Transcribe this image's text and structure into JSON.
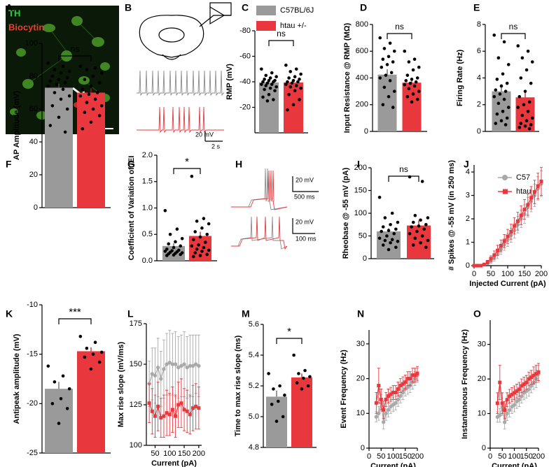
{
  "panel_labels": [
    "A",
    "B",
    "C",
    "D",
    "E",
    "F",
    "G",
    "H",
    "I",
    "J",
    "K",
    "L",
    "M",
    "N",
    "O"
  ],
  "micrograph": {
    "labels": [
      "TH",
      "Biocytin"
    ]
  },
  "traces_b": {
    "scale_y": "20 mV",
    "scale_x": "2 s"
  },
  "traces_h": {
    "top_scale_y": "20 mV",
    "top_scale_x": "500 ms",
    "bottom_scale_y": "20 mV",
    "bottom_scale_x": "100 ms"
  },
  "chart_data": [
    {
      "type": "bar",
      "ylabel": "RMP (mV)",
      "ylim": [
        0,
        -80
      ],
      "yticks": [
        -80,
        -60,
        -40,
        -20
      ],
      "annotation": "ns",
      "legend": "top",
      "series": [
        {
          "name": "C57BL/6J",
          "color": "#9a9a9a",
          "values": [
            -39.5
          ],
          "errors": [
            2
          ],
          "points": [
            -50,
            -47,
            -45,
            -44,
            -43,
            -42,
            -41,
            -41,
            -40,
            -40,
            -39,
            -38,
            -38,
            -37,
            -36,
            -35,
            -34,
            -33,
            -30,
            -28,
            -26,
            -25
          ]
        },
        {
          "name": "htau +/-",
          "color": "#e8383d",
          "values": [
            -39.5
          ],
          "errors": [
            2.3
          ],
          "points": [
            -53,
            -50,
            -48,
            -46,
            -44,
            -43,
            -42,
            -41,
            -40,
            -40,
            -39,
            -38,
            -37,
            -36,
            -35,
            -33,
            -30,
            -26,
            -22,
            -18
          ]
        }
      ]
    },
    {
      "type": "bar",
      "ylabel": "Input Resistance @ RMP (MΩ)",
      "ylim": [
        0,
        800
      ],
      "yticks": [
        0,
        200,
        400,
        600,
        800
      ],
      "annotation": "ns",
      "series": [
        {
          "color": "#9a9a9a",
          "values": [
            425
          ],
          "errors": [
            40
          ],
          "points": [
            700,
            660,
            620,
            600,
            560,
            540,
            520,
            500,
            480,
            440,
            420,
            400,
            380,
            330,
            300,
            260,
            200,
            180
          ]
        },
        {
          "color": "#e8383d",
          "values": [
            365
          ],
          "errors": [
            22
          ],
          "points": [
            600,
            540,
            520,
            480,
            460,
            420,
            400,
            390,
            380,
            370,
            360,
            350,
            340,
            320,
            300,
            280,
            260,
            240,
            220
          ]
        }
      ]
    },
    {
      "type": "bar",
      "ylabel": "Firing Rate (Hz)",
      "ylim": [
        0,
        8
      ],
      "yticks": [
        0,
        2,
        4,
        6,
        8
      ],
      "annotation": "ns",
      "series": [
        {
          "color": "#9a9a9a",
          "values": [
            3.0
          ],
          "errors": [
            0.35
          ],
          "points": [
            7.2,
            6.7,
            5.5,
            5.0,
            4.3,
            3.9,
            3.6,
            3.4,
            3.1,
            3.0,
            2.8,
            2.6,
            2.4,
            2.1,
            1.8,
            1.5,
            1.3,
            1.0,
            0.8,
            0.6,
            0.5
          ]
        },
        {
          "color": "#e8383d",
          "values": [
            2.55
          ],
          "errors": [
            0.4
          ],
          "points": [
            6.4,
            6.0,
            5.5,
            5.2,
            4.6,
            4.0,
            3.6,
            3.0,
            2.6,
            2.2,
            2.0,
            1.8,
            1.5,
            1.2,
            1.0,
            0.8,
            0.6,
            0.5,
            0.4,
            0.3,
            0.2
          ]
        }
      ]
    },
    {
      "type": "bar",
      "ylabel": "AP Amplitude (mV)",
      "ylim": [
        0,
        100
      ],
      "yticks": [
        0,
        20,
        40,
        60,
        80,
        100
      ],
      "annotation": "ns",
      "series": [
        {
          "color": "#9a9a9a",
          "values": [
            73
          ],
          "errors": [
            2.5
          ],
          "points": [
            88,
            86,
            84,
            83,
            82,
            80,
            79,
            78,
            77,
            76,
            75,
            74,
            72,
            70,
            68,
            66,
            62,
            60,
            55,
            50,
            46
          ]
        },
        {
          "color": "#e8383d",
          "values": [
            70
          ],
          "errors": [
            2.5
          ],
          "points": [
            86,
            85,
            84,
            82,
            80,
            78,
            76,
            74,
            72,
            70,
            69,
            68,
            66,
            64,
            62,
            60,
            58,
            56,
            52,
            48
          ]
        }
      ]
    },
    {
      "type": "bar",
      "ylabel": "Coefficient of Variation of IEI",
      "ylim": [
        0,
        2.0
      ],
      "yticks": [
        {
          "value": 0,
          "label": "0.0"
        },
        0.5,
        {
          "value": 1,
          "label": "1.0"
        },
        1.5,
        {
          "value": 2,
          "label": "2.0"
        }
      ],
      "annotation": "*",
      "series": [
        {
          "color": "#9a9a9a",
          "values": [
            0.28
          ],
          "errors": [
            0.05
          ],
          "points": [
            0.95,
            0.6,
            0.5,
            0.42,
            0.36,
            0.32,
            0.28,
            0.25,
            0.22,
            0.2,
            0.19,
            0.18,
            0.17,
            0.16,
            0.15,
            0.14,
            0.13,
            0.12,
            0.11,
            0.1
          ]
        },
        {
          "color": "#e8383d",
          "values": [
            0.47
          ],
          "errors": [
            0.08
          ],
          "points": [
            1.6,
            0.8,
            0.75,
            0.7,
            0.62,
            0.55,
            0.5,
            0.45,
            0.4,
            0.35,
            0.3,
            0.28,
            0.25,
            0.22,
            0.2,
            0.18,
            0.15,
            0.12,
            0.1,
            0.08
          ]
        }
      ]
    },
    {
      "type": "bar",
      "ylabel": "Rheobase @ -55 mV (pA)",
      "ylim": [
        0,
        200
      ],
      "yticks": [
        0,
        50,
        100,
        150,
        200
      ],
      "annotation": "ns",
      "series": [
        {
          "color": "#9a9a9a",
          "values": [
            60
          ],
          "errors": [
            7
          ],
          "points": [
            135,
            100,
            90,
            80,
            75,
            70,
            65,
            62,
            60,
            55,
            50,
            45,
            42,
            40,
            38,
            35,
            30,
            25,
            20
          ]
        },
        {
          "color": "#e8383d",
          "values": [
            73
          ],
          "errors": [
            11
          ],
          "points": [
            180,
            170,
            95,
            90,
            85,
            80,
            75,
            72,
            70,
            65,
            60,
            55,
            50,
            45,
            40,
            35,
            30,
            25
          ]
        }
      ]
    },
    {
      "type": "line",
      "ylabel": "# Spikes @ -55 mV (in 250 ms)",
      "xlabel": "Injected Current (pA)",
      "xlim": [
        0,
        200
      ],
      "xticks": [
        0,
        50,
        100,
        150,
        200
      ],
      "ylim": [
        0,
        4.3
      ],
      "yticks": [
        0,
        1,
        2,
        3,
        4
      ],
      "legend": "upper right",
      "x": [
        0,
        10,
        20,
        30,
        40,
        50,
        60,
        70,
        80,
        90,
        100,
        110,
        120,
        130,
        140,
        150,
        160,
        170,
        180,
        190,
        200
      ],
      "series": [
        {
          "name": "C57",
          "color": "#a9a9a9",
          "marker": "circle",
          "values": [
            0,
            0,
            0,
            0.05,
            0.1,
            0.2,
            0.35,
            0.5,
            0.7,
            0.9,
            1.1,
            1.3,
            1.5,
            1.75,
            2.0,
            2.2,
            2.5,
            2.75,
            3.0,
            3.3,
            3.5
          ],
          "errors": [
            0,
            0,
            0,
            0.03,
            0.06,
            0.1,
            0.15,
            0.2,
            0.22,
            0.25,
            0.28,
            0.3,
            0.32,
            0.35,
            0.37,
            0.4,
            0.42,
            0.45,
            0.48,
            0.5,
            0.55
          ]
        },
        {
          "name": "htau",
          "color": "#e8383d",
          "marker": "square",
          "values": [
            0,
            0,
            0,
            0.05,
            0.15,
            0.3,
            0.45,
            0.65,
            0.85,
            1.05,
            1.25,
            1.45,
            1.7,
            1.9,
            2.15,
            2.4,
            2.6,
            2.9,
            3.15,
            3.4,
            3.6
          ],
          "errors": [
            0,
            0,
            0,
            0.03,
            0.08,
            0.12,
            0.18,
            0.22,
            0.25,
            0.28,
            0.3,
            0.32,
            0.35,
            0.38,
            0.4,
            0.42,
            0.45,
            0.48,
            0.5,
            0.55,
            0.6
          ]
        }
      ]
    },
    {
      "type": "bar",
      "ylabel": "Antipeak amplitude (mV)",
      "ylim": [
        -25,
        -10
      ],
      "yticks": [
        -25,
        -20,
        -15,
        -10
      ],
      "annotation": "***",
      "series": [
        {
          "color": "#9a9a9a",
          "values": [
            -18.5
          ],
          "errors": [
            0.7
          ],
          "points": [
            -16.2,
            -17.2,
            -17.8,
            -18.5,
            -19.5,
            -20.0,
            -20.5,
            -22.0
          ]
        },
        {
          "color": "#e8383d",
          "values": [
            -14.7
          ],
          "errors": [
            0.4
          ],
          "points": [
            -13.2,
            -13.8,
            -14.4,
            -14.8,
            -15.0,
            -15.3,
            -15.8,
            -16.5
          ]
        }
      ]
    },
    {
      "type": "line",
      "ylabel": "Max rise slope (mV/ms)",
      "xlabel": "Current (pA)",
      "xlim": [
        20,
        210
      ],
      "xticks": [
        50,
        100,
        150,
        200
      ],
      "ylim": [
        100,
        175
      ],
      "yticks": [
        100,
        125,
        150,
        175
      ],
      "x": [
        30,
        40,
        50,
        60,
        70,
        80,
        90,
        100,
        110,
        120,
        130,
        140,
        150,
        160,
        170,
        180,
        190,
        200
      ],
      "series": [
        {
          "color": "#a9a9a9",
          "marker": "circle",
          "values": [
            138,
            144,
            143,
            148,
            141,
            147,
            150,
            151,
            150,
            150,
            148,
            149,
            150,
            148,
            149,
            149,
            150,
            149
          ],
          "errors": [
            14,
            16,
            17,
            18,
            17,
            18,
            19,
            20,
            19,
            20,
            19,
            19,
            20,
            19,
            19,
            19,
            18,
            19
          ]
        },
        {
          "color": "#e8383d",
          "marker": "square",
          "values": [
            126,
            121,
            118,
            124,
            117,
            118,
            120,
            119,
            122,
            118,
            125,
            126,
            122,
            121,
            119,
            123,
            124,
            123
          ],
          "errors": [
            12,
            14,
            13,
            15,
            12,
            13,
            14,
            13,
            14,
            13,
            14,
            15,
            13,
            13,
            12,
            14,
            14,
            13
          ]
        }
      ]
    },
    {
      "type": "bar",
      "ylabel": "Time to max rise slope (ms)",
      "ylim": [
        4.8,
        5.6
      ],
      "yticks": [
        4.8,
        {
          "value": 5,
          "label": "5.0"
        },
        5.2,
        5.4,
        5.6
      ],
      "annotation": "*",
      "series": [
        {
          "color": "#9a9a9a",
          "values": [
            5.13
          ],
          "errors": [
            0.04
          ],
          "points": [
            5.28,
            5.2,
            5.18,
            5.14,
            5.1,
            5.08,
            5.0,
            4.97
          ]
        },
        {
          "color": "#e8383d",
          "values": [
            5.255
          ],
          "errors": [
            0.025
          ],
          "points": [
            5.4,
            5.3,
            5.28,
            5.26,
            5.25,
            5.22,
            5.2,
            5.18
          ]
        }
      ]
    },
    {
      "type": "line",
      "ylabel": "Event Frequency (Hz)",
      "xlabel": "Current (pA)",
      "xlim": [
        0,
        200
      ],
      "xticks": [
        0,
        50,
        100,
        150,
        200
      ],
      "ylim": [
        0,
        34
      ],
      "yticks": [
        0,
        10,
        20,
        30
      ],
      "x": [
        30,
        40,
        50,
        60,
        70,
        80,
        90,
        100,
        110,
        120,
        130,
        140,
        150,
        160,
        170,
        180,
        190,
        200
      ],
      "series": [
        {
          "color": "#a9a9a9",
          "marker": "circle",
          "values": [
            9,
            10,
            13,
            7.5,
            10,
            11,
            12,
            12.5,
            13,
            14,
            15,
            16,
            17,
            17.5,
            18,
            19,
            20,
            21
          ],
          "errors": [
            1.5,
            2,
            2.5,
            2,
            2,
            2,
            2,
            2,
            2,
            2,
            2,
            2,
            2,
            2,
            2,
            2,
            2,
            2
          ]
        },
        {
          "color": "#e8383d",
          "marker": "square",
          "values": [
            13,
            18,
            14,
            11,
            14,
            15,
            15.5,
            16,
            16,
            17,
            18,
            18.5,
            19,
            20,
            20,
            21,
            21,
            21.5
          ],
          "errors": [
            3,
            5,
            3,
            2.5,
            2,
            2,
            2,
            2,
            2,
            2,
            2,
            2,
            2,
            2,
            2,
            2,
            2,
            2
          ]
        }
      ]
    },
    {
      "type": "line",
      "ylabel": "Instantaneous Frequency (Hz)",
      "xlabel": "Current (pA)",
      "xlim": [
        0,
        200
      ],
      "xticks": [
        0,
        50,
        100,
        150,
        200
      ],
      "ylim": [
        0,
        37
      ],
      "yticks": [
        0,
        10,
        20,
        30
      ],
      "x": [
        30,
        40,
        50,
        60,
        70,
        80,
        90,
        100,
        110,
        120,
        130,
        140,
        150,
        160,
        170,
        180,
        190,
        200
      ],
      "series": [
        {
          "color": "#a9a9a9",
          "marker": "circle",
          "values": [
            9,
            9.5,
            12,
            7.5,
            10,
            11,
            12,
            12.5,
            13.5,
            14,
            15,
            16,
            16.5,
            17,
            18,
            19,
            20,
            21.5
          ],
          "errors": [
            1.5,
            2,
            2.5,
            2,
            2,
            2,
            2,
            2,
            2,
            2,
            2,
            2,
            2,
            2,
            2,
            2,
            2.5,
            2.5
          ]
        },
        {
          "color": "#e8383d",
          "marker": "square",
          "values": [
            13,
            19,
            13,
            11,
            14,
            15,
            15.5,
            16,
            16.5,
            17,
            18,
            18.5,
            19,
            20,
            20.5,
            21,
            21.5,
            22
          ],
          "errors": [
            3,
            5,
            3,
            2.5,
            2,
            2,
            2,
            2,
            2,
            2,
            2,
            2,
            2,
            2,
            2,
            2.5,
            2.5,
            2.5
          ]
        }
      ]
    }
  ]
}
